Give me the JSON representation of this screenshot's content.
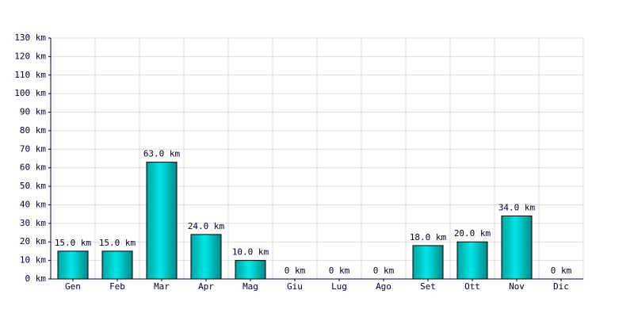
{
  "chart_data": {
    "type": "bar",
    "categories": [
      "Gen",
      "Feb",
      "Mar",
      "Apr",
      "Mag",
      "Giu",
      "Lug",
      "Ago",
      "Set",
      "Ott",
      "Nov",
      "Dic"
    ],
    "values": [
      15,
      15,
      63,
      24,
      10,
      0,
      0,
      0,
      18,
      20,
      34,
      0
    ],
    "value_labels": [
      "15.0 km",
      "15.0 km",
      "63.0 km",
      "24.0 km",
      "10.0 km",
      "0 km",
      "0 km",
      "0 km",
      "18.0 km",
      "20.0 km",
      "34.0 km",
      "0 km"
    ],
    "color": "#00c8c8",
    "ylim": [
      0,
      130
    ],
    "yticks": [
      {
        "value": 0,
        "label": "0 km"
      },
      {
        "value": 10,
        "label": "10 km"
      },
      {
        "value": 20,
        "label": "20 km"
      },
      {
        "value": 30,
        "label": "30 km"
      },
      {
        "value": 40,
        "label": "40 km"
      },
      {
        "value": 50,
        "label": "50 km"
      },
      {
        "value": 60,
        "label": "60 km"
      },
      {
        "value": 70,
        "label": "70 km"
      },
      {
        "value": 80,
        "label": "80 km"
      },
      {
        "value": 90,
        "label": "90 km"
      },
      {
        "value": 100,
        "label": "100 km"
      },
      {
        "value": 110,
        "label": "110 km"
      },
      {
        "value": 120,
        "label": "120 km"
      },
      {
        "value": 130,
        "label": "130 km"
      }
    ],
    "grid": true
  }
}
